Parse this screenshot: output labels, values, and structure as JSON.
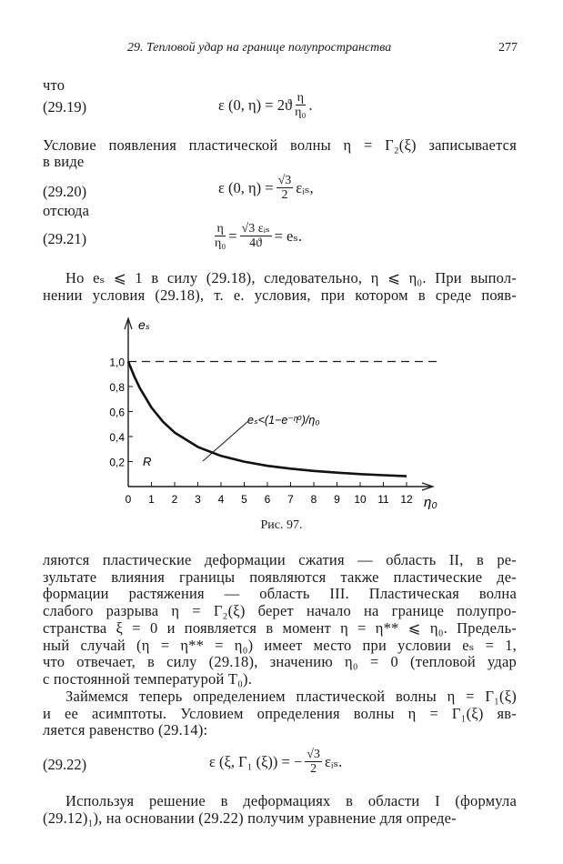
{
  "header": {
    "running_title": "29. Тепловой удар на границе полупространства",
    "page_number": "277"
  },
  "text_top": {
    "that": "что",
    "cond_line1": "Условие появления пластической волны η = Γ₂(ξ) записывается",
    "cond_line2": "в виде",
    "hence": "отсюда"
  },
  "equations": {
    "eq_29_19": {
      "number": "(29.19)",
      "lhs": "ε (0, η) = 2ϑ",
      "num": "η",
      "den": "η₀",
      "tail": "."
    },
    "eq_29_20": {
      "number": "(29.20)",
      "lhs": "ε (0, η) =",
      "num": "√3",
      "den": "2",
      "tail": "εᵢₛ,"
    },
    "eq_29_21": {
      "number": "(29.21)",
      "num1": "η",
      "den1": "η₀",
      "mid": "=",
      "num2": "√3 εᵢₛ",
      "den2": "4ϑ",
      "tail": "= eₛ."
    },
    "eq_29_22": {
      "number": "(29.22)",
      "lhs": "ε (ξ, Γ₁ (ξ)) = −",
      "num": "√3",
      "den": "2",
      "tail": "εᵢₛ."
    }
  },
  "para_before_figure": [
    "Но eₛ ⩽ 1 в силу (29.18), следовательно, η ⩽ η₀. При выпол-",
    "нении условия (29.18), т. е. условия, при котором в среде появ-"
  ],
  "chart_data": {
    "type": "line",
    "xlabel": "η₀",
    "ylabel": "eₛ",
    "xlim": [
      0,
      12
    ],
    "ylim": [
      0,
      1.0
    ],
    "x_ticks": [
      "0",
      "1",
      "2",
      "3",
      "4",
      "5",
      "6",
      "7",
      "8",
      "9",
      "10",
      "11",
      "12"
    ],
    "y_ticks": [
      "0,2",
      "0,4",
      "0,6",
      "0,8",
      "1,0"
    ],
    "grid": false,
    "series": [
      {
        "x": [
          0,
          0.25,
          0.5,
          1,
          1.5,
          2,
          3,
          4,
          5,
          6,
          7,
          8,
          9,
          10,
          11,
          12
        ],
        "y": [
          1.0,
          0.885,
          0.787,
          0.632,
          0.518,
          0.432,
          0.317,
          0.245,
          0.199,
          0.166,
          0.143,
          0.125,
          0.111,
          0.1,
          0.091,
          0.083
        ]
      }
    ],
    "reference_line": {
      "y": 1.0,
      "style": "dashed"
    },
    "annotations": {
      "curve_label": "eₛ<(1−e⁻ᶯ⁰)/η₀",
      "region_label": "R"
    },
    "caption": "Рис. 97."
  },
  "para_after_figure": [
    "ляются пластические деформации сжатия — область II, в ре-",
    "зультате влияния границы появляются также пластические де-",
    "формации растяжения — область III. Пластическая волна",
    "слабого разрыва η = Γ₂(ξ) берет начало на границе полупро-",
    "странства ξ = 0 и появляется в момент η = η** ⩽ η₀. Предель-",
    "ный случай (η = η** = η₀) имеет место при условии eₛ = 1,",
    "что отвечает, в силу (29.18), значению η₀ = 0 (тепловой удар",
    "с постоянной температурой T₀)."
  ],
  "para_gamma1": [
    "Займемся теперь определением пластической волны η = Γ₁(ξ)",
    "и ее асимптоты. Условием определения волны η = Γ₁(ξ) яв-",
    "ляется равенство (29.14):"
  ],
  "para_last": [
    "Используя решение в деформациях в области I (формула",
    "(29.12)₁), на основании (29.22) получим уравнение для опреде-"
  ]
}
